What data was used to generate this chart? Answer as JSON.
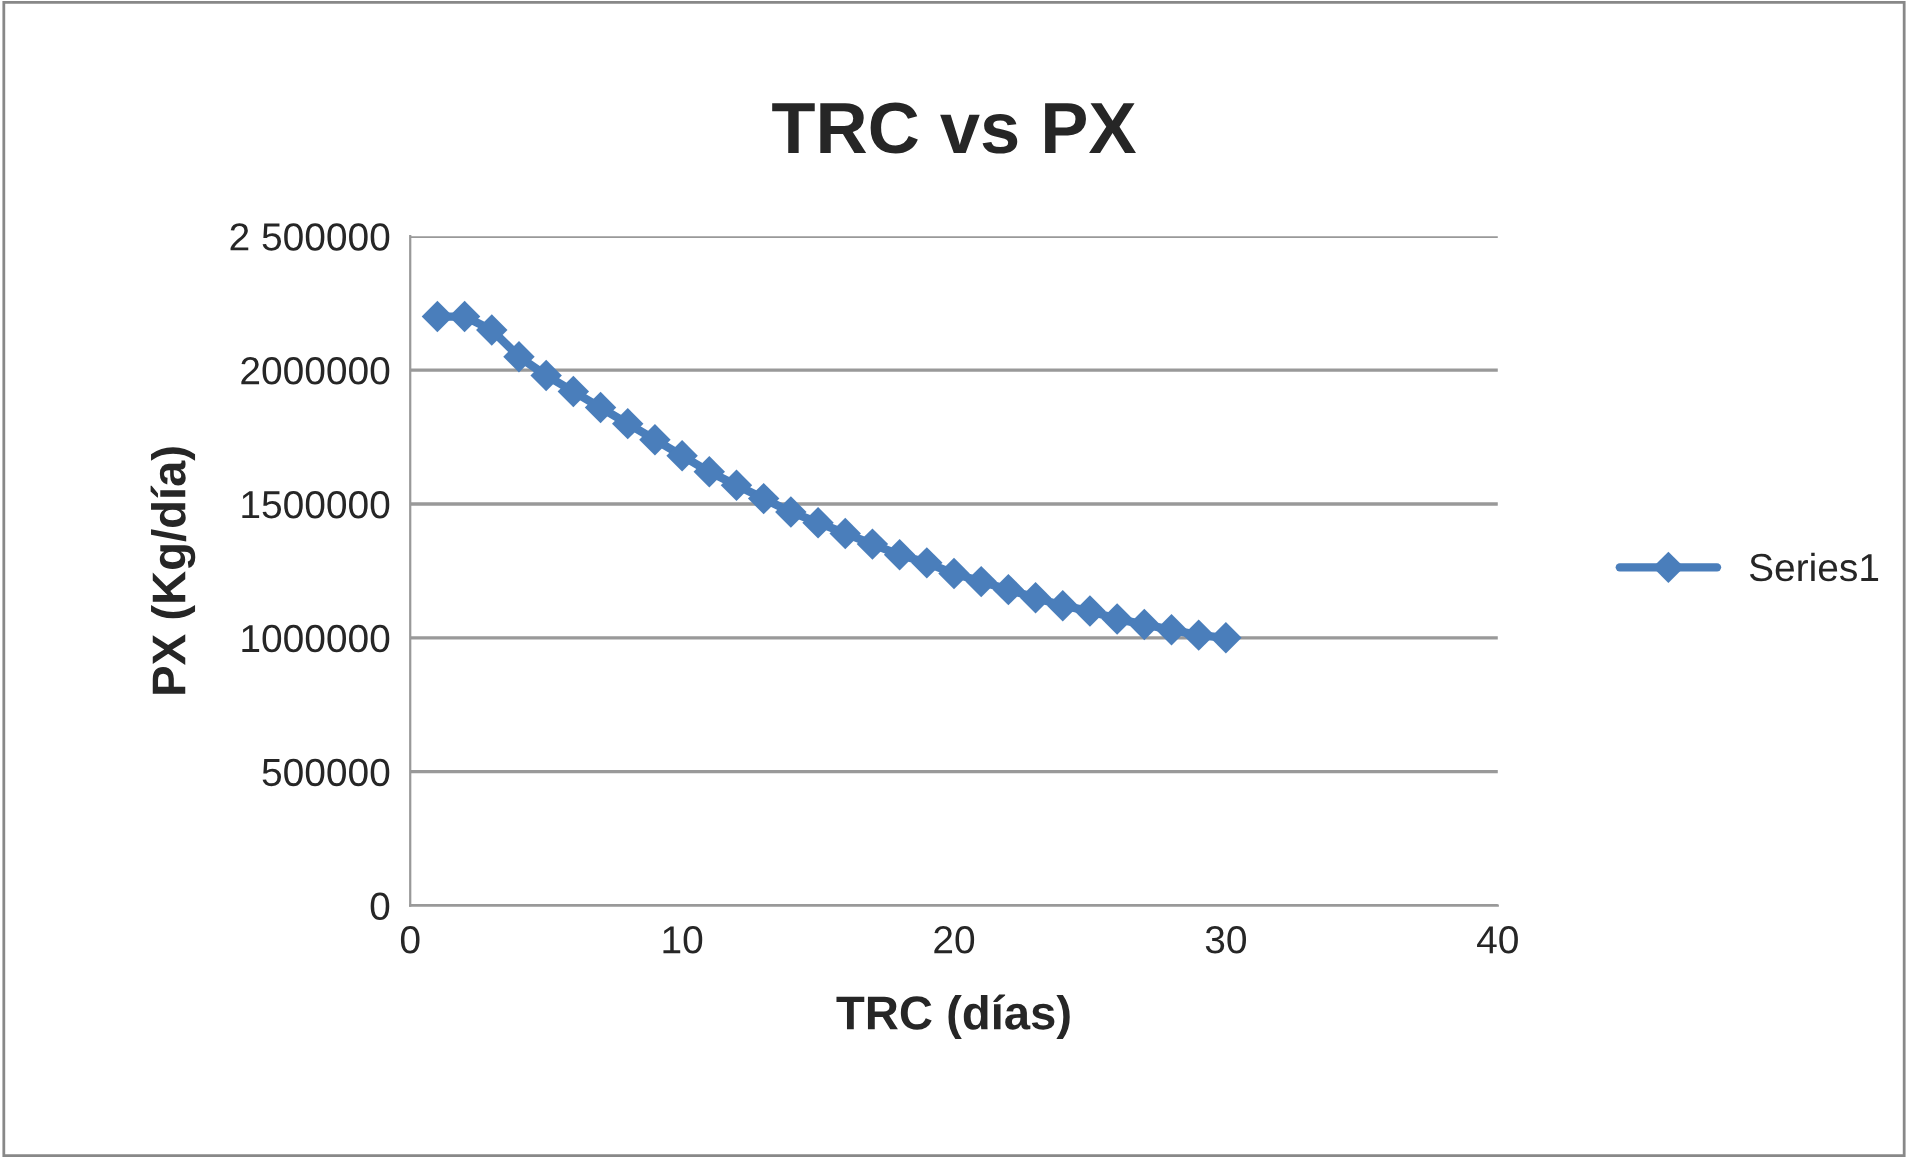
{
  "chart_data": {
    "type": "line",
    "title": "TRC vs PX",
    "xlabel": "TRC (días)",
    "ylabel": "PX (Kg/día)",
    "x": [
      1,
      2,
      3,
      4,
      5,
      6,
      7,
      8,
      9,
      10,
      11,
      12,
      13,
      14,
      15,
      16,
      17,
      18,
      19,
      20,
      21,
      22,
      23,
      24,
      25,
      26,
      27,
      28,
      29,
      30
    ],
    "series": [
      {
        "name": "Series1",
        "color": "#4a7ebb",
        "values": [
          2200000,
          2200000,
          2150000,
          2050000,
          1980000,
          1920000,
          1860000,
          1800000,
          1740000,
          1680000,
          1620000,
          1570000,
          1520000,
          1470000,
          1430000,
          1390000,
          1350000,
          1310000,
          1280000,
          1240000,
          1210000,
          1180000,
          1150000,
          1120000,
          1100000,
          1070000,
          1050000,
          1030000,
          1010000,
          1000000
        ]
      }
    ],
    "xlim": [
      0,
      40
    ],
    "xticks": [
      0,
      10,
      20,
      30,
      40
    ],
    "ylim": [
      0,
      2500000
    ],
    "yticks": [
      0,
      500000,
      1000000,
      1500000,
      2000000,
      {
        "value": 2500000,
        "label": "2 500000"
      }
    ],
    "grid": "y",
    "legend": "right",
    "marker": "diamond",
    "line_style": "solid"
  }
}
